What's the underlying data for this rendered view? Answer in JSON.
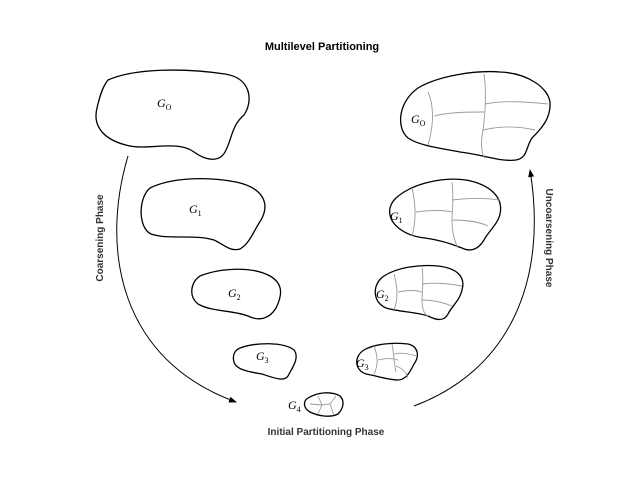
{
  "title": "Multilevel Partitioning",
  "phases": {
    "coarsening": "Coarsening Phase",
    "initial": "Initial Partitioning Phase",
    "uncoarsening": "Uncoarsening Phase"
  },
  "graphs_left": [
    {
      "name": "G",
      "sub": "O"
    },
    {
      "name": "G",
      "sub": "1"
    },
    {
      "name": "G",
      "sub": "2"
    },
    {
      "name": "G",
      "sub": "3"
    }
  ],
  "graph_bottom": {
    "name": "G",
    "sub": "4"
  },
  "graphs_right": [
    {
      "name": "G",
      "sub": "O"
    },
    {
      "name": "G",
      "sub": "1"
    },
    {
      "name": "G",
      "sub": "2"
    },
    {
      "name": "G",
      "sub": "3"
    }
  ]
}
